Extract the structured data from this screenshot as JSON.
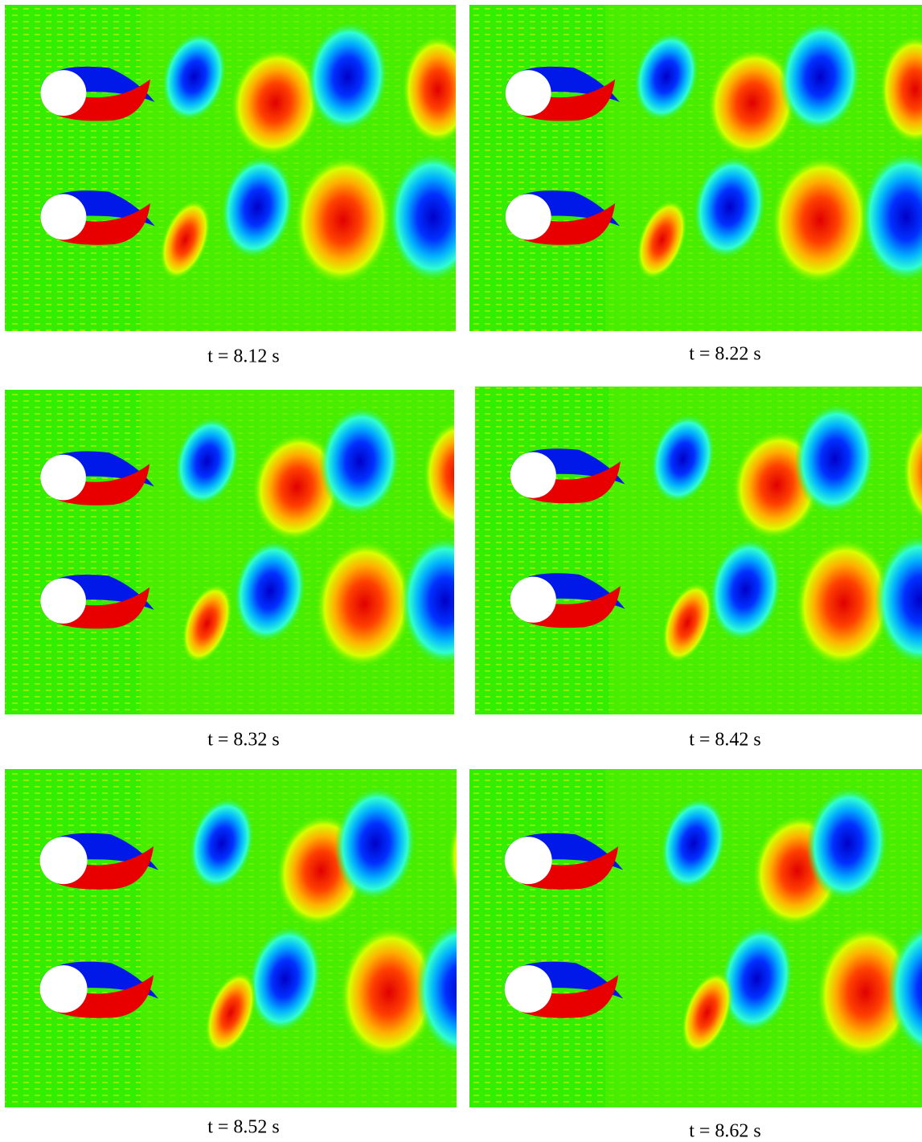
{
  "panels": [
    {
      "caption": "t = 8.12 s"
    },
    {
      "caption": "t = 8.22 s"
    },
    {
      "caption": "t = 8.32 s"
    },
    {
      "caption": "t = 8.42 s"
    },
    {
      "caption": "t = 8.52 s"
    },
    {
      "caption": "t = 8.62 s"
    }
  ]
}
